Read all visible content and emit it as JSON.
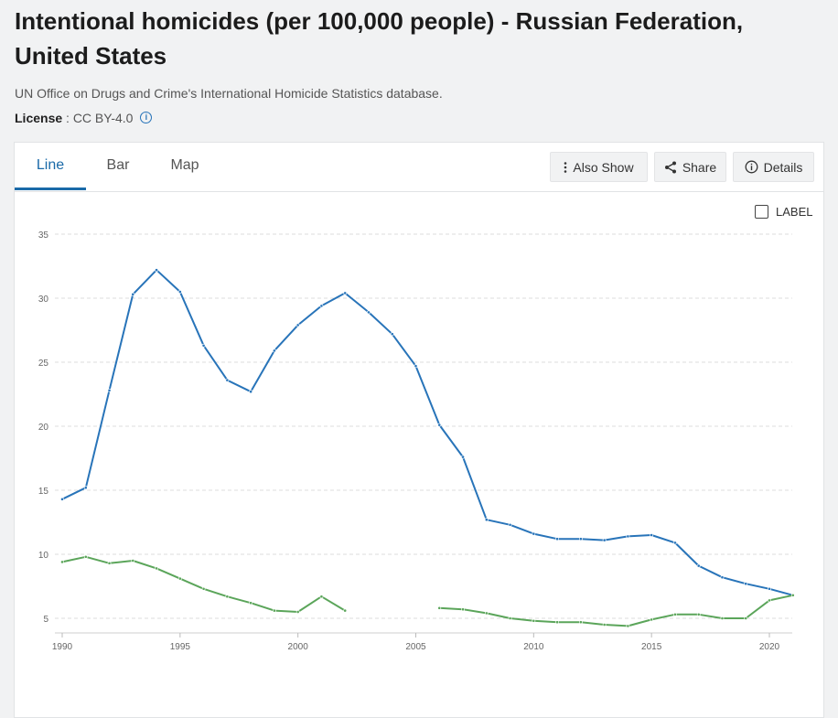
{
  "header": {
    "title": "Intentional homicides (per 100,000 people) - Russian Federation, United States",
    "source": "UN Office on Drugs and Crime's International Homicide Statistics database.",
    "license_label": "License",
    "license_sep": " : ",
    "license_value": "CC BY-4.0",
    "info_icon": "info-icon"
  },
  "tabs": [
    {
      "label": "Line",
      "active": true
    },
    {
      "label": "Bar",
      "active": false
    },
    {
      "label": "Map",
      "active": false
    }
  ],
  "toolbar": {
    "also_show": "Also Show",
    "share": "Share",
    "details": "Details"
  },
  "label_toggle": "LABEL",
  "colors": {
    "russia": "#2874b9",
    "us": "#5ba55a",
    "accent": "#1a6aa8"
  },
  "chart_data": {
    "type": "line",
    "title": "",
    "xlabel": "",
    "ylabel": "",
    "xlim": [
      1990,
      2021
    ],
    "ylim": [
      5,
      35
    ],
    "yticks": [
      5,
      10,
      15,
      20,
      25,
      30,
      35
    ],
    "xticks": [
      1990,
      1995,
      2000,
      2005,
      2010,
      2015,
      2020
    ],
    "grid": true,
    "legend": "none",
    "series": [
      {
        "key": "russia",
        "x": [
          1990,
          1991,
          1992,
          1993,
          1994,
          1995,
          1996,
          1997,
          1998,
          1999,
          2000,
          2001,
          2002,
          2003,
          2004,
          2005,
          2006,
          2007,
          2008,
          2009,
          2010,
          2011,
          2012,
          2013,
          2014,
          2015,
          2016,
          2017,
          2018,
          2019,
          2020,
          2021
        ],
        "y": [
          14.3,
          15.2,
          22.8,
          30.3,
          32.2,
          30.5,
          26.3,
          23.6,
          22.7,
          25.9,
          27.9,
          29.4,
          30.4,
          28.9,
          27.2,
          24.7,
          20.1,
          17.6,
          12.7,
          12.3,
          11.6,
          11.2,
          11.2,
          11.1,
          11.4,
          11.5,
          10.9,
          9.1,
          8.2,
          7.7,
          7.3,
          6.8
        ]
      },
      {
        "key": "us",
        "x": [
          1990,
          1991,
          1992,
          1993,
          1994,
          1995,
          1996,
          1997,
          1998,
          1999,
          2000,
          2001,
          2002,
          2006,
          2007,
          2008,
          2009,
          2010,
          2011,
          2012,
          2013,
          2014,
          2015,
          2016,
          2017,
          2018,
          2019,
          2020,
          2021
        ],
        "y": [
          9.4,
          9.8,
          9.3,
          9.5,
          8.9,
          8.1,
          7.3,
          6.7,
          6.2,
          5.6,
          5.5,
          6.7,
          5.6,
          5.8,
          5.7,
          5.4,
          5.0,
          4.8,
          4.7,
          4.7,
          4.5,
          4.4,
          4.9,
          5.3,
          5.3,
          5.0,
          5.0,
          6.4,
          6.8
        ]
      }
    ]
  }
}
